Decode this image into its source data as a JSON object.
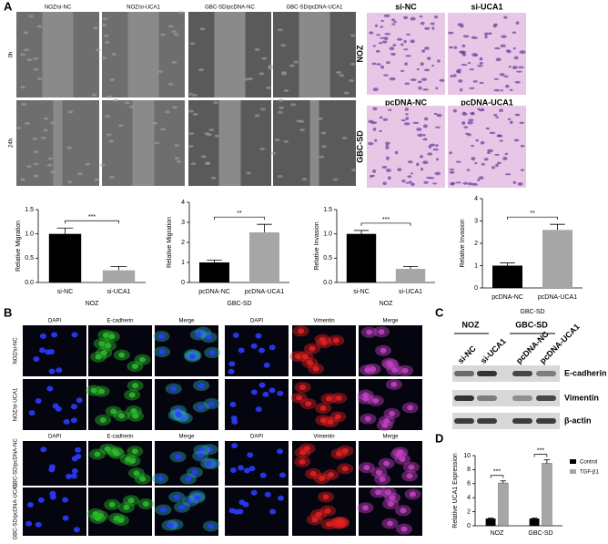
{
  "panel_labels": [
    "A",
    "B",
    "C",
    "D"
  ],
  "migration": {
    "columns": [
      "NOZ/si-NC",
      "NOZ/si-UCA1",
      "GBC-SD/pcDNA-NC",
      "GBC-SD/pcDNA-UCA1"
    ],
    "rows": [
      "0h",
      "24h"
    ]
  },
  "invasion": {
    "columns_top": [
      "si-NC",
      "si-UCA1"
    ],
    "columns_bottom": [
      "pcDNA-NC",
      "pcDNA-UCA1"
    ],
    "rows": [
      "NOZ",
      "GBC-SD"
    ]
  },
  "immunofluorescence": {
    "headers": [
      "DAPI",
      "E-cadherin",
      "Merge",
      "DAPI",
      "Vimentin",
      "Merge"
    ],
    "rows": [
      "NOZ/si-NC",
      "NOZ/si-UCA1",
      "GBC-SD/pcDNA-NC",
      "GBC-SD/pcDNA-UCA1"
    ]
  },
  "western_blot": {
    "groups": [
      "NOZ",
      "GBC-SD"
    ],
    "lanes": [
      "si-NC",
      "si-UCA1",
      "pcDNA-NC",
      "pcDNA-UCA1"
    ],
    "bands": [
      "E-cadherin",
      "Vimentin",
      "β-actin"
    ]
  },
  "chart_data": [
    {
      "type": "bar",
      "ylabel": "Relative Migration",
      "xlabel": "NOZ",
      "categories": [
        "si-NC",
        "si-UCA1"
      ],
      "values": [
        1.0,
        0.25
      ],
      "errors": [
        0.12,
        0.08
      ],
      "color": "#000000",
      "colors": [
        "#000000",
        "#a6a6a6"
      ],
      "annotation": "***",
      "ylim": [
        0,
        1.5
      ],
      "yticks": [
        {
          "value": 0,
          "label": "0.0"
        },
        0.5,
        {
          "value": 1,
          "label": "1.0"
        },
        1.5
      ]
    },
    {
      "type": "bar",
      "ylabel": "Relative Migration",
      "xlabel": "GBC-SD",
      "categories": [
        "pcDNA-NC",
        "pcDNA-UCA1"
      ],
      "values": [
        1.0,
        2.5
      ],
      "errors": [
        0.12,
        0.4
      ],
      "colors": [
        "#000000",
        "#a6a6a6"
      ],
      "annotation": "**",
      "ylim": [
        0,
        4
      ],
      "yticks": [
        0,
        1,
        2,
        3,
        4
      ]
    },
    {
      "type": "bar",
      "ylabel": "Relative Invasion",
      "xlabel": "NOZ",
      "categories": [
        "si-NC",
        "si-UCA1"
      ],
      "values": [
        1.0,
        0.28
      ],
      "errors": [
        0.07,
        0.05
      ],
      "colors": [
        "#000000",
        "#a6a6a6"
      ],
      "annotation": "***",
      "ylim": [
        0,
        1.5
      ],
      "yticks": [
        {
          "value": 0,
          "label": "0.0"
        },
        0.5,
        {
          "value": 1,
          "label": "1.0"
        },
        1.5
      ]
    },
    {
      "type": "bar",
      "ylabel": "Relative Invasion",
      "xlabel": "GBC-SD",
      "categories": [
        "pcDNA-NC",
        "pcDNA-UCA1"
      ],
      "values": [
        1.0,
        2.6
      ],
      "errors": [
        0.12,
        0.25
      ],
      "colors": [
        "#000000",
        "#a6a6a6"
      ],
      "annotation": "**",
      "ylim": [
        0,
        4
      ],
      "yticks": [
        0,
        1,
        2,
        3,
        4
      ]
    },
    {
      "type": "grouped_bar",
      "ylabel": "Relative UCA1 Expression",
      "categories": [
        "NOZ",
        "GBC-SD"
      ],
      "series": [
        {
          "name": "Control",
          "color": "#000000",
          "values": [
            1.0,
            1.0
          ],
          "errors": [
            0.1,
            0.1
          ]
        },
        {
          "name": "TGF-β1",
          "color": "#a6a6a6",
          "values": [
            6.1,
            8.9
          ],
          "errors": [
            0.3,
            0.5
          ]
        }
      ],
      "annotations": [
        "***",
        "***"
      ],
      "ylim": [
        0,
        10
      ],
      "yticks": [
        0,
        2,
        4,
        6,
        8,
        10
      ]
    }
  ]
}
